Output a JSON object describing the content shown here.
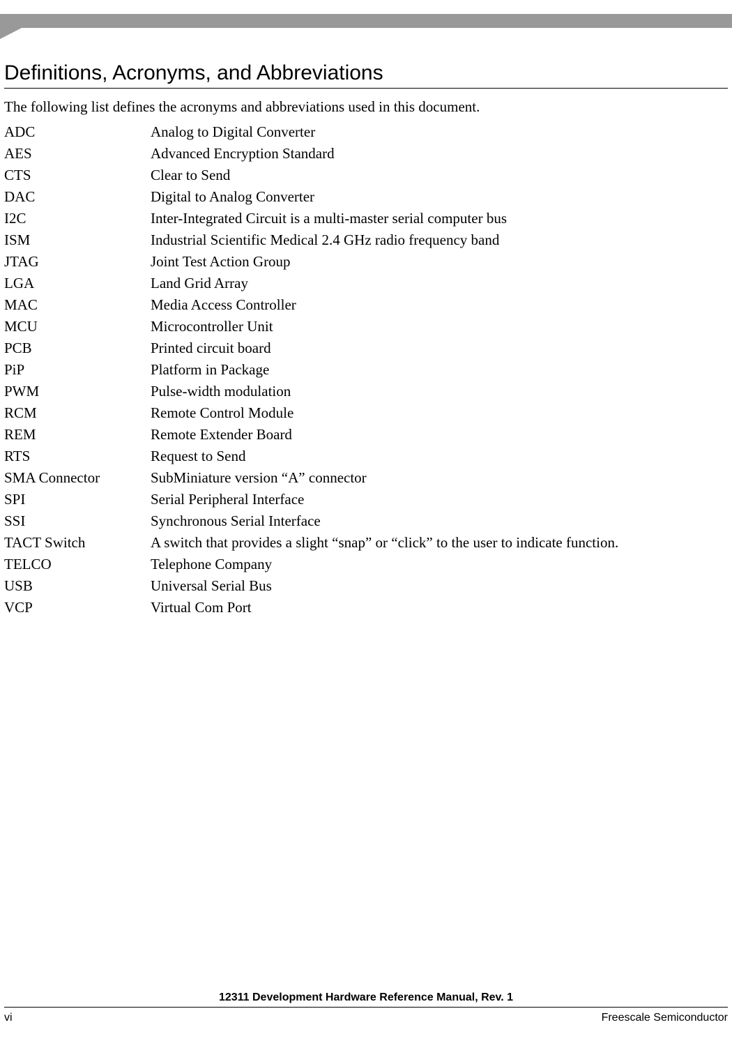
{
  "header": {
    "bar_color": "#999999"
  },
  "section": {
    "title": "Definitions, Acronyms, and Abbreviations",
    "intro": "The following list defines the acronyms and abbreviations used in this document."
  },
  "definitions": [
    {
      "term": "ADC",
      "def": "Analog to Digital Converter"
    },
    {
      "term": "AES",
      "def": "Advanced Encryption Standard"
    },
    {
      "term": "CTS",
      "def": "Clear to Send"
    },
    {
      "term": "DAC",
      "def": "Digital to Analog Converter"
    },
    {
      "term": "I2C",
      "def": "Inter-Integrated Circuit is a multi-master serial computer bus"
    },
    {
      "term": "ISM",
      "def": "Industrial Scientific Medical 2.4 GHz radio frequency band"
    },
    {
      "term": "JTAG",
      "def": "Joint Test Action Group"
    },
    {
      "term": "LGA",
      "def": "Land Grid Array"
    },
    {
      "term": "MAC",
      "def": "Media Access Controller"
    },
    {
      "term": "MCU",
      "def": "Microcontroller Unit"
    },
    {
      "term": "PCB",
      "def": "Printed circuit board"
    },
    {
      "term": "PiP",
      "def": "Platform in Package"
    },
    {
      "term": "PWM",
      "def": "Pulse-width modulation"
    },
    {
      "term": "RCM",
      "def": "Remote Control Module"
    },
    {
      "term": "REM",
      "def": "Remote Extender Board"
    },
    {
      "term": "RTS",
      "def": "Request to Send"
    },
    {
      "term": "SMA Connector",
      "def": "SubMiniature version “A” connector"
    },
    {
      "term": "SPI",
      "def": "Serial Peripheral Interface"
    },
    {
      "term": "SSI",
      "def": "Synchronous Serial Interface"
    },
    {
      "term": "TACT Switch",
      "def": "A switch that provides a slight “snap” or “click” to the user to indicate function."
    },
    {
      "term": "TELCO",
      "def": "Telephone Company"
    },
    {
      "term": "USB",
      "def": "Universal Serial Bus"
    },
    {
      "term": "VCP",
      "def": "Virtual Com Port"
    }
  ],
  "footer": {
    "doc_title": "12311 Development Hardware Reference Manual, Rev. 1",
    "page_number": "vi",
    "company": "Freescale Semiconductor"
  }
}
